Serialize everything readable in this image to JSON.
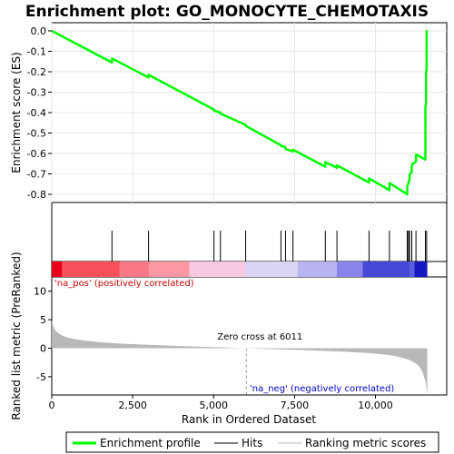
{
  "chart_data": {
    "type": "line",
    "title": "Enrichment plot: GO_MONOCYTE_CHEMOTAXIS",
    "top_panel": {
      "ylabel": "Enrichment score (ES)",
      "ylim": [
        -0.84,
        0.04
      ],
      "yticks": [
        0.0,
        -0.1,
        -0.2,
        -0.3,
        -0.4,
        -0.5,
        -0.6,
        -0.7,
        -0.8
      ],
      "ytick_labels": [
        "0.0",
        "-0.1",
        "-0.2",
        "-0.3",
        "-0.4",
        "-0.5",
        "-0.6",
        "-0.7",
        "-0.8"
      ],
      "series": [
        {
          "name": "Enrichment profile",
          "color": "#00ff00",
          "x": [
            0,
            1860,
            1861,
            2990,
            2991,
            5010,
            5011,
            5210,
            5211,
            5990,
            5991,
            7080,
            7081,
            7220,
            7221,
            7450,
            7451,
            8450,
            8451,
            8810,
            8811,
            9800,
            9801,
            10430,
            10431,
            10980,
            10981,
            11050,
            11051,
            11120,
            11121,
            11250,
            11251,
            11540,
            11541,
            11560,
            11561,
            11580,
            11581,
            11600
          ],
          "y": [
            0.0,
            -0.155,
            -0.135,
            -0.228,
            -0.215,
            -0.385,
            -0.39,
            -0.4,
            -0.405,
            -0.46,
            -0.465,
            -0.56,
            -0.562,
            -0.57,
            -0.578,
            -0.59,
            -0.582,
            -0.665,
            -0.642,
            -0.67,
            -0.658,
            -0.742,
            -0.722,
            -0.78,
            -0.745,
            -0.8,
            -0.76,
            -0.73,
            -0.705,
            -0.69,
            -0.655,
            -0.64,
            -0.605,
            -0.63,
            -0.37,
            -0.36,
            -0.2,
            -0.19,
            0.0,
            0.0
          ]
        }
      ]
    },
    "hits_panel": {
      "name": "Hits",
      "positions": [
        1860,
        2990,
        5010,
        5210,
        5990,
        7080,
        7220,
        7450,
        8450,
        8810,
        9800,
        10430,
        10980,
        11020,
        11050,
        11120,
        11250,
        11540,
        11580
      ]
    },
    "colorbar": {
      "segments": [
        {
          "x0": 0,
          "x1": 320,
          "color": "#e8001a"
        },
        {
          "x0": 320,
          "x1": 2100,
          "color": "#f85058"
        },
        {
          "x0": 2100,
          "x1": 3000,
          "color": "#f87888"
        },
        {
          "x0": 3000,
          "x1": 4250,
          "color": "#fc98a4"
        },
        {
          "x0": 4250,
          "x1": 5980,
          "color": "#f8c8e0"
        },
        {
          "x0": 5980,
          "x1": 7600,
          "color": "#d8d4f4"
        },
        {
          "x0": 7600,
          "x1": 8800,
          "color": "#b8b4f0"
        },
        {
          "x0": 8800,
          "x1": 9600,
          "color": "#8884ec"
        },
        {
          "x0": 9600,
          "x1": 11050,
          "color": "#4848d8"
        },
        {
          "x0": 11050,
          "x1": 11200,
          "color": "#5c5ce0"
        },
        {
          "x0": 11200,
          "x1": 11600,
          "color": "#1818c0"
        }
      ]
    },
    "bottom_panel": {
      "ylabel": "Ranked list metric (PreRanked)",
      "ylim": [
        -8.2,
        12.5
      ],
      "yticks": [
        10,
        5,
        0,
        -5
      ],
      "ytick_labels": [
        "10",
        "5",
        "0",
        "-5"
      ],
      "fill_color": "#b8b8b8",
      "x": [
        0,
        30,
        60,
        100,
        150,
        200,
        300,
        400,
        500,
        700,
        1000,
        1500,
        2000,
        3000,
        4000,
        5000,
        6011,
        7000,
        8000,
        9000,
        9600,
        10000,
        10400,
        10700,
        10900,
        11100,
        11250,
        11350,
        11420,
        11470,
        11510,
        11540,
        11560,
        11580,
        11600
      ],
      "values": [
        4.8,
        4.2,
        3.7,
        3.2,
        2.9,
        2.65,
        2.3,
        2.05,
        1.85,
        1.6,
        1.35,
        1.05,
        0.85,
        0.6,
        0.38,
        0.2,
        0.0,
        -0.2,
        -0.38,
        -0.6,
        -0.78,
        -0.95,
        -1.2,
        -1.5,
        -1.8,
        -2.2,
        -2.7,
        -3.2,
        -3.8,
        -4.5,
        -5.2,
        -5.8,
        -6.5,
        -7.3,
        -8.0
      ],
      "annotations": {
        "positive": "'na_pos' (positively correlated)",
        "negative": "'na_neg' (negatively correlated)",
        "zero_cross": "Zero cross at 6011",
        "zero_cross_x": 6011
      }
    },
    "xlabel": "Rank in Ordered Dataset",
    "xlim": [
      0,
      12200
    ],
    "xticks": [
      0,
      2500,
      5000,
      7500,
      10000
    ],
    "xtick_labels": [
      "0",
      "2,500",
      "5,000",
      "7,500",
      "10,000"
    ],
    "legend": {
      "placement": "bottom",
      "entries": [
        {
          "label": "Enrichment profile",
          "color": "#00ff00"
        },
        {
          "label": "Hits",
          "color": "#000000"
        },
        {
          "label": "Ranking metric scores",
          "color": "#b8b8b8"
        }
      ]
    }
  }
}
